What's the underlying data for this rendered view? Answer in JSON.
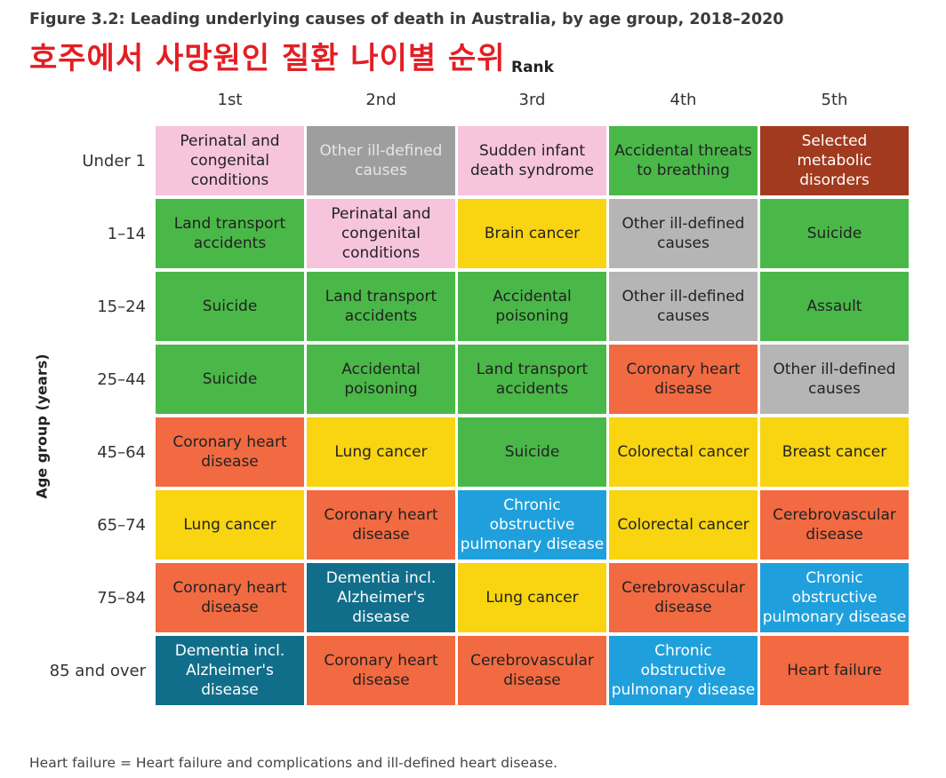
{
  "title": "Figure 3.2: Leading underlying causes of death in Australia, by age group, 2018–2020",
  "overlay_text": "호주에서 사망원인 질환 나이별 순위",
  "footnote": "Heart failure = Heart failure and complications and ill-defined heart disease.",
  "chart_data": {
    "type": "table",
    "x_axis_title": "Rank",
    "y_axis_title": "Age group (years)",
    "columns": [
      "1st",
      "2nd",
      "3rd",
      "4th",
      "5th"
    ],
    "rows": [
      {
        "age": "Under 1",
        "cells": [
          {
            "text": "Perinatal and congenital conditions",
            "color": "#f7c4de",
            "fg": "dark"
          },
          {
            "text": "Other ill-defined causes",
            "color": "#9e9e9e",
            "fg": "dim"
          },
          {
            "text": "Sudden infant death syndrome",
            "color": "#f7c4de",
            "fg": "dark"
          },
          {
            "text": "Accidental threats to breathing",
            "color": "#4ab848",
            "fg": "dark"
          },
          {
            "text": "Selected metabolic disorders",
            "color": "#a23a1f",
            "fg": "light"
          }
        ]
      },
      {
        "age": "1–14",
        "cells": [
          {
            "text": "Land transport accidents",
            "color": "#4ab848",
            "fg": "dark"
          },
          {
            "text": "Perinatal and congenital conditions",
            "color": "#f7c4de",
            "fg": "dark"
          },
          {
            "text": "Brain cancer",
            "color": "#f9d410",
            "fg": "dark"
          },
          {
            "text": "Other ill-defined causes",
            "color": "#b5b5b5",
            "fg": "dark"
          },
          {
            "text": "Suicide",
            "color": "#4ab848",
            "fg": "dark"
          }
        ]
      },
      {
        "age": "15–24",
        "cells": [
          {
            "text": "Suicide",
            "color": "#4ab848",
            "fg": "dark"
          },
          {
            "text": "Land transport accidents",
            "color": "#4ab848",
            "fg": "dark"
          },
          {
            "text": "Accidental poisoning",
            "color": "#4ab848",
            "fg": "dark"
          },
          {
            "text": "Other ill-defined causes",
            "color": "#b5b5b5",
            "fg": "dark"
          },
          {
            "text": "Assault",
            "color": "#4ab848",
            "fg": "dark"
          }
        ]
      },
      {
        "age": "25–44",
        "cells": [
          {
            "text": "Suicide",
            "color": "#4ab848",
            "fg": "dark"
          },
          {
            "text": "Accidental poisoning",
            "color": "#4ab848",
            "fg": "dark"
          },
          {
            "text": "Land transport accidents",
            "color": "#4ab848",
            "fg": "dark"
          },
          {
            "text": "Coronary heart disease",
            "color": "#f26a41",
            "fg": "dark"
          },
          {
            "text": "Other ill-defined causes",
            "color": "#b5b5b5",
            "fg": "dark"
          }
        ]
      },
      {
        "age": "45–64",
        "cells": [
          {
            "text": "Coronary heart disease",
            "color": "#f26a41",
            "fg": "dark"
          },
          {
            "text": "Lung cancer",
            "color": "#f9d410",
            "fg": "dark"
          },
          {
            "text": "Suicide",
            "color": "#4ab848",
            "fg": "dark"
          },
          {
            "text": "Colorectal cancer",
            "color": "#f9d410",
            "fg": "dark"
          },
          {
            "text": "Breast cancer",
            "color": "#f9d410",
            "fg": "dark"
          }
        ]
      },
      {
        "age": "65–74",
        "cells": [
          {
            "text": "Lung cancer",
            "color": "#f9d410",
            "fg": "dark"
          },
          {
            "text": "Coronary heart disease",
            "color": "#f26a41",
            "fg": "dark"
          },
          {
            "text": "Chronic obstructive pulmonary disease",
            "color": "#1fa0dc",
            "fg": "light"
          },
          {
            "text": "Colorectal cancer",
            "color": "#f9d410",
            "fg": "dark"
          },
          {
            "text": "Cerebrovascular disease",
            "color": "#f26a41",
            "fg": "dark"
          }
        ]
      },
      {
        "age": "75–84",
        "cells": [
          {
            "text": "Coronary heart disease",
            "color": "#f26a41",
            "fg": "dark"
          },
          {
            "text": "Dementia incl. Alzheimer's disease",
            "color": "#116e8a",
            "fg": "light"
          },
          {
            "text": "Lung cancer",
            "color": "#f9d410",
            "fg": "dark"
          },
          {
            "text": "Cerebrovascular disease",
            "color": "#f26a41",
            "fg": "dark"
          },
          {
            "text": "Chronic obstructive pulmonary disease",
            "color": "#1fa0dc",
            "fg": "light"
          }
        ]
      },
      {
        "age": "85 and over",
        "cells": [
          {
            "text": "Dementia incl. Alzheimer's disease",
            "color": "#116e8a",
            "fg": "light"
          },
          {
            "text": "Coronary heart disease",
            "color": "#f26a41",
            "fg": "dark"
          },
          {
            "text": "Cerebrovascular disease",
            "color": "#f26a41",
            "fg": "dark"
          },
          {
            "text": "Chronic obstructive pulmonary disease",
            "color": "#1fa0dc",
            "fg": "light"
          },
          {
            "text": "Heart failure",
            "color": "#f26a41",
            "fg": "dark"
          }
        ]
      }
    ]
  }
}
